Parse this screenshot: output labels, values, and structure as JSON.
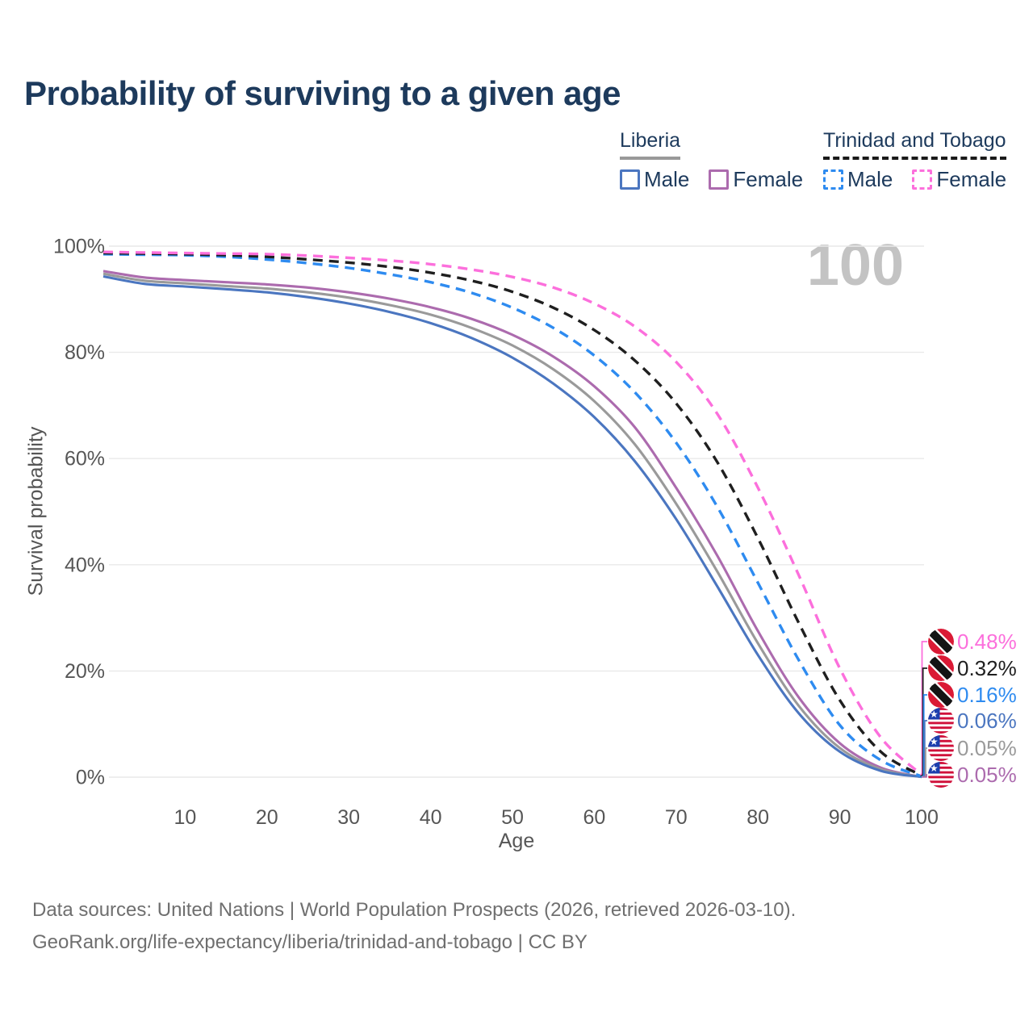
{
  "title": "Probability of surviving to a given age",
  "watermark_age": "100",
  "legend": {
    "groups": [
      {
        "name": "Liberia",
        "line_style": "solid",
        "underline_color": "#999999",
        "items": [
          {
            "label": "Male",
            "color": "#4B76C0"
          },
          {
            "label": "Female",
            "color": "#AC6BAE"
          }
        ]
      },
      {
        "name": "Trinidad and Tobago",
        "line_style": "dashed",
        "underline_color": "#1a1a1a",
        "items": [
          {
            "label": "Male",
            "color": "#2E8BF0"
          },
          {
            "label": "Female",
            "color": "#FC6FDC"
          }
        ]
      }
    ]
  },
  "chart_data": {
    "type": "line",
    "title": "Probability of surviving to a given age",
    "xlabel": "Age",
    "ylabel": "Survival probability",
    "xlim": [
      0,
      100
    ],
    "ylim": [
      0,
      100
    ],
    "x_ticks": [
      10,
      20,
      30,
      40,
      50,
      60,
      70,
      80,
      90,
      100
    ],
    "y_ticks": [
      0,
      20,
      40,
      60,
      80,
      100
    ],
    "y_tick_suffix": "%",
    "grid": "horizontal-only",
    "legend_position": "top-right",
    "x": [
      0,
      5,
      10,
      15,
      20,
      25,
      30,
      35,
      40,
      45,
      50,
      55,
      60,
      65,
      70,
      75,
      80,
      85,
      90,
      95,
      100
    ],
    "series": [
      {
        "name": "Trinidad and Tobago — Female",
        "country": "Trinidad and Tobago",
        "sex": "Female",
        "color": "#FC6FDC",
        "line_style": "dashed",
        "flag": "trinidad-and-tobago",
        "end_label": "0.48%",
        "values": [
          98.9,
          98.8,
          98.7,
          98.6,
          98.5,
          98.2,
          97.8,
          97.3,
          96.6,
          95.6,
          94.2,
          92.2,
          89.2,
          84.8,
          78.2,
          68.5,
          54.5,
          38.0,
          20.5,
          7.5,
          0.48
        ]
      },
      {
        "name": "Trinidad and Tobago — Both sexes",
        "country": "Trinidad and Tobago",
        "sex": "Both sexes",
        "color": "#1f1f1f",
        "line_style": "dashed",
        "flag": "trinidad-and-tobago",
        "end_label": "0.32%",
        "values": [
          98.7,
          98.6,
          98.5,
          98.3,
          98.0,
          97.5,
          96.9,
          96.1,
          95.0,
          93.5,
          91.4,
          88.4,
          84.2,
          78.4,
          70.4,
          59.4,
          45.0,
          29.0,
          14.5,
          4.8,
          0.32
        ]
      },
      {
        "name": "Trinidad and Tobago — Male",
        "country": "Trinidad and Tobago",
        "sex": "Male",
        "color": "#2E8BF0",
        "line_style": "dashed",
        "flag": "trinidad-and-tobago",
        "end_label": "0.16%",
        "values": [
          98.5,
          98.4,
          98.3,
          98.0,
          97.5,
          96.8,
          95.9,
          94.7,
          93.2,
          91.2,
          88.4,
          84.6,
          79.4,
          72.4,
          63.0,
          51.0,
          36.6,
          22.0,
          9.8,
          3.2,
          0.16
        ]
      },
      {
        "name": "Liberia — Male",
        "country": "Liberia",
        "sex": "Male",
        "color": "#4B76C0",
        "line_style": "solid",
        "flag": "liberia",
        "end_label": "0.06%",
        "values": [
          94.3,
          92.9,
          92.4,
          91.9,
          91.3,
          90.4,
          89.2,
          87.6,
          85.5,
          82.7,
          79.0,
          74.1,
          67.8,
          59.4,
          48.6,
          36.0,
          23.0,
          12.0,
          4.8,
          1.2,
          0.06
        ]
      },
      {
        "name": "Liberia — Both sexes",
        "country": "Liberia",
        "sex": "Both sexes",
        "color": "#9A9A9A",
        "line_style": "solid",
        "flag": "liberia",
        "end_label": "0.05%",
        "values": [
          94.8,
          93.5,
          93.0,
          92.5,
          92.0,
          91.3,
          90.3,
          88.9,
          87.1,
          84.6,
          81.3,
          76.8,
          70.8,
          62.6,
          51.5,
          38.8,
          25.2,
          13.4,
          5.5,
          1.5,
          0.05
        ]
      },
      {
        "name": "Liberia — Female",
        "country": "Liberia",
        "sex": "Female",
        "color": "#AC6BAE",
        "line_style": "solid",
        "flag": "liberia",
        "end_label": "0.05%",
        "values": [
          95.3,
          94.1,
          93.6,
          93.2,
          92.8,
          92.2,
          91.3,
          90.1,
          88.5,
          86.3,
          83.3,
          79.2,
          73.6,
          65.8,
          54.5,
          41.8,
          27.5,
          15.0,
          6.4,
          1.8,
          0.05
        ]
      }
    ]
  },
  "footer": {
    "line1": "Data sources: United Nations | World Population Prospects (2026, retrieved 2026-03-10).",
    "line2": "GeoRank.org/life-expectancy/liberia/trinidad-and-tobago | CC BY"
  }
}
